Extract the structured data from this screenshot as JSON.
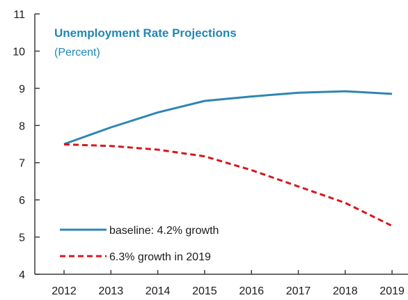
{
  "chart_data": {
    "type": "line",
    "title": "Unemployment Rate Projections",
    "subtitle": "(Percent)",
    "xlabel": "",
    "ylabel": "",
    "x": [
      2012,
      2013,
      2014,
      2015,
      2016,
      2017,
      2018,
      2019
    ],
    "x_tick_labels": [
      "2012",
      "2013",
      "2014",
      "2015",
      "2016",
      "2017",
      "2018",
      "2019"
    ],
    "y_tick_labels": [
      "4",
      "5",
      "6",
      "7",
      "8",
      "9",
      "10",
      "11"
    ],
    "ylim": [
      4,
      11
    ],
    "grid": false,
    "legend_position": "bottom-left",
    "series": [
      {
        "name": "baseline: 4.2% growth",
        "style": "solid",
        "color": "#2f85b3",
        "values": [
          7.5,
          7.95,
          8.35,
          8.66,
          8.78,
          8.88,
          8.92,
          8.85
        ]
      },
      {
        "name": "6.3% growth in 2019",
        "style": "dashed",
        "color": "#d9161c",
        "values": [
          7.49,
          7.45,
          7.35,
          7.17,
          6.8,
          6.36,
          5.92,
          5.3
        ]
      }
    ]
  }
}
